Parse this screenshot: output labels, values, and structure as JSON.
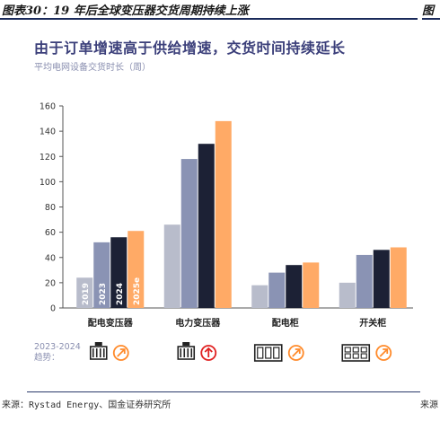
{
  "figure": {
    "title": "图表30：19 年后全球变压器交货周期持续上涨",
    "title_right": "图",
    "source": "来源：Rystad Energy、国金证券研究所",
    "source_right": "来源"
  },
  "chart_data": {
    "type": "bar",
    "title": "由于订单增速高于供给增速，交货时间持续延长",
    "ylabel": "平均电网设备交货时长（周）",
    "xlabel": "",
    "ylim": [
      0,
      160
    ],
    "yticks": [
      0,
      20,
      40,
      60,
      80,
      100,
      120,
      140,
      160
    ],
    "categories": [
      "配电变压器",
      "电力变压器",
      "配电柜",
      "开关柜"
    ],
    "series": [
      {
        "name": "2019",
        "values": [
          24,
          66,
          18,
          20
        ],
        "color": "#b8bccb"
      },
      {
        "name": "2023",
        "values": [
          52,
          118,
          28,
          42
        ],
        "color": "#8a93b4"
      },
      {
        "name": "2024",
        "values": [
          56,
          130,
          34,
          46
        ],
        "color": "#1c2135"
      },
      {
        "name": "2025e",
        "values": [
          61,
          148,
          36,
          48
        ],
        "color": "#ffaa66"
      }
    ],
    "grid": false,
    "legend": "in-bar labels",
    "trend_label": [
      "2023-2024",
      "趋势："
    ],
    "trend_icons": [
      {
        "equipment": "transformer-icon",
        "trend": "up-right-arrow-icon",
        "trend_color": "#ff8a2a"
      },
      {
        "equipment": "transformer-icon",
        "trend": "up-arrow-icon",
        "trend_color": "#e02020"
      },
      {
        "equipment": "switchgear-cabinet-icon",
        "trend": "up-right-arrow-icon",
        "trend_color": "#ff8a2a"
      },
      {
        "equipment": "switchgear-panel-icon",
        "trend": "up-right-arrow-icon",
        "trend_color": "#ff8a2a"
      }
    ]
  }
}
